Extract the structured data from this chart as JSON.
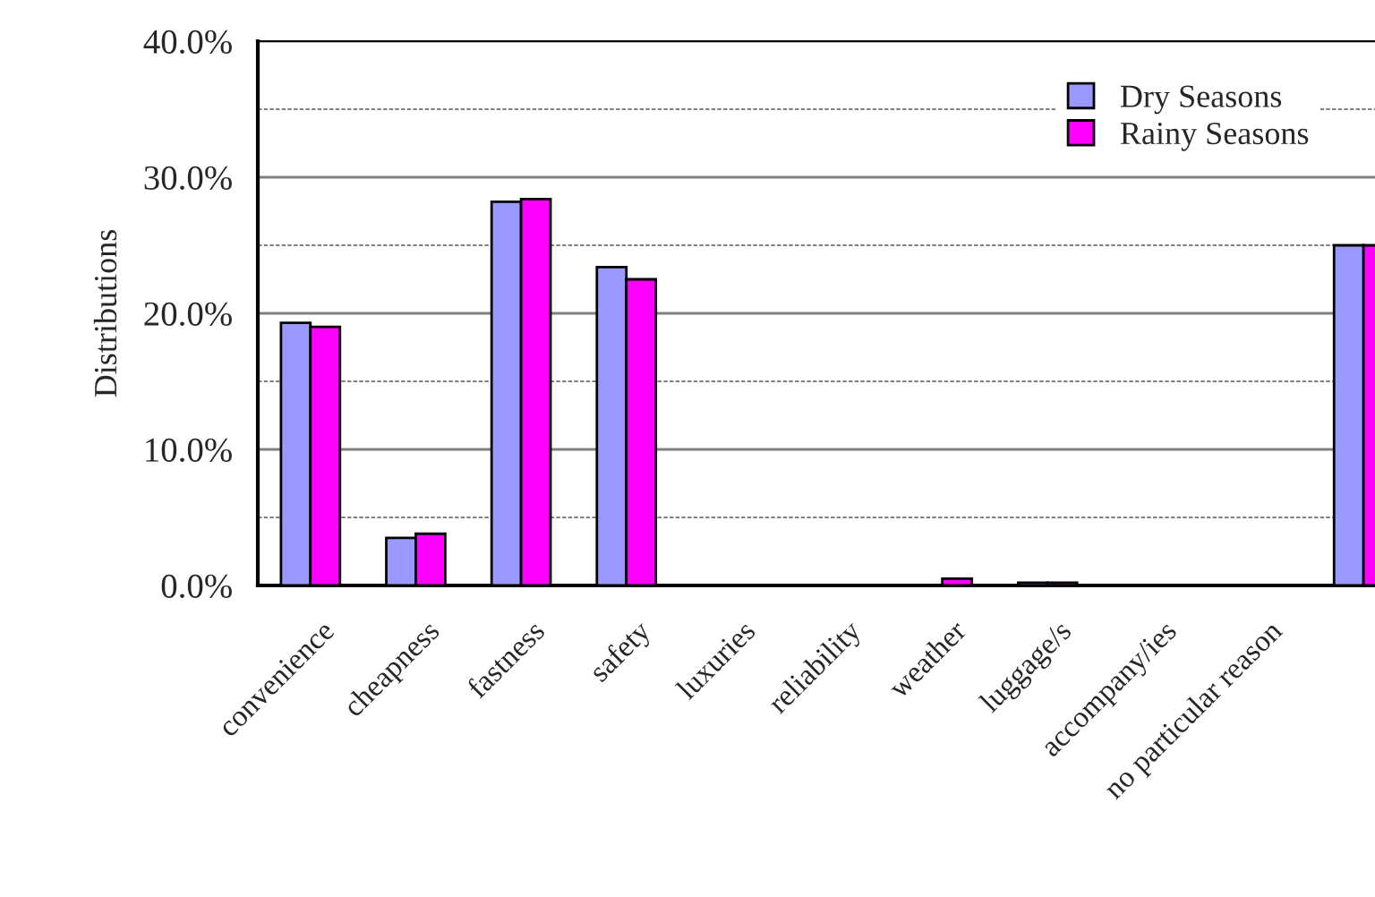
{
  "chart_data": {
    "type": "bar",
    "ylabel": "Distributions",
    "categories": [
      "convenience",
      "cheapness",
      "fastness",
      "safety",
      "luxuries",
      "reliability",
      "weather",
      "luggage/s",
      "accompany/ies",
      "no particular reason",
      null
    ],
    "series": [
      {
        "name": "Dry Seasons",
        "color": "#9999ff",
        "values": [
          19.3,
          3.5,
          28.2,
          23.4,
          null,
          null,
          null,
          0.2,
          null,
          null,
          25.0
        ]
      },
      {
        "name": "Rainy Seasons",
        "color": "#ff00ff",
        "values": [
          19.0,
          3.8,
          28.4,
          22.5,
          null,
          null,
          0.5,
          0.2,
          null,
          null,
          25.0
        ]
      }
    ],
    "ylim": [
      0,
      40
    ],
    "yticks": [
      {
        "value": 0,
        "label": "0.0%"
      },
      {
        "value": 10,
        "label": "10.0%"
      },
      {
        "value": 20,
        "label": "20.0%"
      },
      {
        "value": 30,
        "label": "30.0%"
      },
      {
        "value": 40,
        "label": "40.0%"
      }
    ],
    "grid": "y",
    "legend": "top right"
  }
}
